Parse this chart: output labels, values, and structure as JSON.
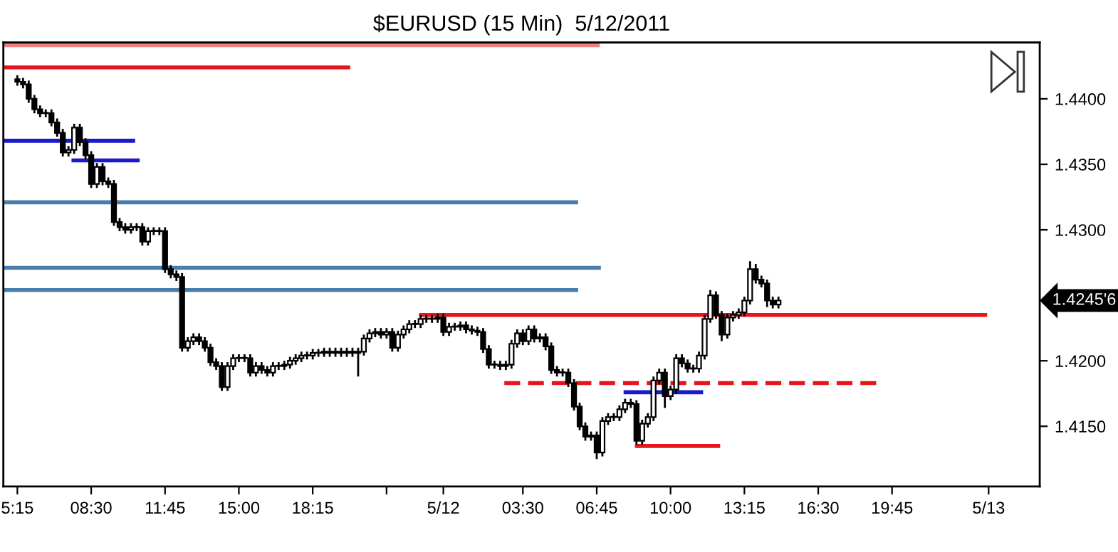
{
  "chart_data": {
    "type": "candlestick",
    "title": "$EURUSD (15 Min)  5/12/2011",
    "x": [
      "2011-05-11T05:15",
      "2011-05-11T05:30",
      "2011-05-11T05:45",
      "2011-05-11T06:00",
      "2011-05-11T06:15",
      "2011-05-11T06:30",
      "2011-05-11T06:45",
      "2011-05-11T07:00",
      "2011-05-11T07:15",
      "2011-05-11T07:30",
      "2011-05-11T07:45",
      "2011-05-11T08:00",
      "2011-05-11T08:15",
      "2011-05-11T08:30",
      "2011-05-11T08:45",
      "2011-05-11T09:00",
      "2011-05-11T09:15",
      "2011-05-11T09:30",
      "2011-05-11T09:45",
      "2011-05-11T10:00",
      "2011-05-11T10:15",
      "2011-05-11T10:30",
      "2011-05-11T10:45",
      "2011-05-11T11:00",
      "2011-05-11T11:15",
      "2011-05-11T11:30",
      "2011-05-11T11:45",
      "2011-05-11T12:00",
      "2011-05-11T12:15",
      "2011-05-11T12:30",
      "2011-05-11T12:45",
      "2011-05-11T13:00",
      "2011-05-11T13:15",
      "2011-05-11T13:30",
      "2011-05-11T13:45",
      "2011-05-11T14:00",
      "2011-05-11T14:15",
      "2011-05-11T14:30",
      "2011-05-11T14:45",
      "2011-05-11T15:00",
      "2011-05-11T15:15",
      "2011-05-11T15:30",
      "2011-05-11T15:45",
      "2011-05-11T16:00",
      "2011-05-11T16:15",
      "2011-05-11T16:30",
      "2011-05-11T16:45",
      "2011-05-11T17:00",
      "2011-05-11T17:15",
      "2011-05-11T17:30",
      "2011-05-11T17:45",
      "2011-05-11T18:00",
      "2011-05-11T18:15",
      "2011-05-11T18:30",
      "2011-05-11T18:45",
      "2011-05-11T19:00",
      "2011-05-11T19:15",
      "2011-05-11T19:30",
      "2011-05-11T19:45",
      "2011-05-11T20:00",
      "2011-05-11T20:15",
      "2011-05-11T20:30",
      "2011-05-11T20:45",
      "2011-05-11T21:00",
      "2011-05-11T21:15",
      "2011-05-11T21:30",
      "2011-05-11T21:45",
      "2011-05-11T22:00",
      "2011-05-11T22:15",
      "2011-05-11T22:30",
      "2011-05-11T22:45",
      "2011-05-11T23:00",
      "2011-05-11T23:15",
      "2011-05-11T23:30",
      "2011-05-11T23:45",
      "2011-05-12T00:00",
      "2011-05-12T00:15",
      "2011-05-12T00:30",
      "2011-05-12T00:45",
      "2011-05-12T01:00",
      "2011-05-12T01:15",
      "2011-05-12T01:30",
      "2011-05-12T01:45",
      "2011-05-12T02:00",
      "2011-05-12T02:15",
      "2011-05-12T02:30",
      "2011-05-12T02:45",
      "2011-05-12T03:00",
      "2011-05-12T03:15",
      "2011-05-12T03:30",
      "2011-05-12T03:45",
      "2011-05-12T04:00",
      "2011-05-12T04:15",
      "2011-05-12T04:30",
      "2011-05-12T04:45",
      "2011-05-12T05:00",
      "2011-05-12T05:15",
      "2011-05-12T05:30",
      "2011-05-12T05:45",
      "2011-05-12T06:00",
      "2011-05-12T06:15",
      "2011-05-12T06:30",
      "2011-05-12T06:45",
      "2011-05-12T07:00",
      "2011-05-12T07:15",
      "2011-05-12T07:30",
      "2011-05-12T07:45",
      "2011-05-12T08:00",
      "2011-05-12T08:15",
      "2011-05-12T08:30",
      "2011-05-12T08:45",
      "2011-05-12T09:00",
      "2011-05-12T09:15",
      "2011-05-12T09:30",
      "2011-05-12T09:45",
      "2011-05-12T10:00",
      "2011-05-12T10:15",
      "2011-05-12T10:30",
      "2011-05-12T10:45",
      "2011-05-12T11:00",
      "2011-05-12T11:15",
      "2011-05-12T11:30",
      "2011-05-12T11:45",
      "2011-05-12T12:00",
      "2011-05-12T12:15",
      "2011-05-12T12:30",
      "2011-05-12T12:45",
      "2011-05-12T13:00",
      "2011-05-12T13:15",
      "2011-05-12T13:30",
      "2011-05-12T13:45",
      "2011-05-12T14:00",
      "2011-05-12T14:15",
      "2011-05-12T14:30",
      "2011-05-12T14:45"
    ],
    "ohlc": [
      [
        1.4415,
        1.4418,
        1.441,
        1.4413
      ],
      [
        1.4413,
        1.4416,
        1.4408,
        1.4411
      ],
      [
        1.4411,
        1.4414,
        1.4397,
        1.44
      ],
      [
        1.44,
        1.4403,
        1.4389,
        1.4392
      ],
      [
        1.4392,
        1.4395,
        1.4386,
        1.4389
      ],
      [
        1.4389,
        1.4392,
        1.4386,
        1.4389
      ],
      [
        1.4389,
        1.4392,
        1.4379,
        1.4382
      ],
      [
        1.4382,
        1.4385,
        1.4371,
        1.4374
      ],
      [
        1.4374,
        1.4377,
        1.4356,
        1.4359
      ],
      [
        1.4359,
        1.4364,
        1.4356,
        1.4361
      ],
      [
        1.4361,
        1.4381,
        1.4358,
        1.4378
      ],
      [
        1.4378,
        1.4381,
        1.4364,
        1.4367
      ],
      [
        1.4367,
        1.437,
        1.4354,
        1.4357
      ],
      [
        1.4357,
        1.436,
        1.4332,
        1.4335
      ],
      [
        1.4335,
        1.4351,
        1.4332,
        1.4348
      ],
      [
        1.4348,
        1.4351,
        1.4334,
        1.4337
      ],
      [
        1.4337,
        1.434,
        1.4332,
        1.4335
      ],
      [
        1.4335,
        1.4338,
        1.4303,
        1.4306
      ],
      [
        1.4306,
        1.4309,
        1.4299,
        1.4302
      ],
      [
        1.4302,
        1.4305,
        1.4297,
        1.43
      ],
      [
        1.43,
        1.4305,
        1.4297,
        1.4302
      ],
      [
        1.4302,
        1.4305,
        1.4299,
        1.4302
      ],
      [
        1.4302,
        1.4305,
        1.4288,
        1.4291
      ],
      [
        1.4291,
        1.4302,
        1.4288,
        1.4299
      ],
      [
        1.4299,
        1.4302,
        1.4296,
        1.4299
      ],
      [
        1.4299,
        1.4302,
        1.4296,
        1.4299
      ],
      [
        1.4299,
        1.4302,
        1.4267,
        1.427
      ],
      [
        1.427,
        1.4273,
        1.4263,
        1.4266
      ],
      [
        1.4266,
        1.4269,
        1.4261,
        1.4264
      ],
      [
        1.4264,
        1.4267,
        1.4207,
        1.421
      ],
      [
        1.421,
        1.4218,
        1.4207,
        1.4215
      ],
      [
        1.4215,
        1.4221,
        1.4212,
        1.4218
      ],
      [
        1.4218,
        1.4221,
        1.4212,
        1.4215
      ],
      [
        1.4215,
        1.4218,
        1.4207,
        1.421
      ],
      [
        1.421,
        1.4213,
        1.4196,
        1.4199
      ],
      [
        1.4199,
        1.4202,
        1.4193,
        1.4196
      ],
      [
        1.4196,
        1.4199,
        1.4177,
        1.418
      ],
      [
        1.418,
        1.4199,
        1.4177,
        1.4196
      ],
      [
        1.4196,
        1.4205,
        1.4193,
        1.4202
      ],
      [
        1.4202,
        1.4205,
        1.4199,
        1.4202
      ],
      [
        1.4202,
        1.4205,
        1.4199,
        1.4202
      ],
      [
        1.4202,
        1.4205,
        1.4188,
        1.4191
      ],
      [
        1.4191,
        1.4199,
        1.4188,
        1.4196
      ],
      [
        1.4196,
        1.4199,
        1.419,
        1.4193
      ],
      [
        1.4193,
        1.4196,
        1.4188,
        1.4191
      ],
      [
        1.4191,
        1.4199,
        1.4188,
        1.4196
      ],
      [
        1.4196,
        1.4199,
        1.4193,
        1.4196
      ],
      [
        1.4196,
        1.42,
        1.4193,
        1.4197
      ],
      [
        1.4197,
        1.4203,
        1.4194,
        1.42
      ],
      [
        1.42,
        1.4205,
        1.4197,
        1.4202
      ],
      [
        1.4202,
        1.4207,
        1.4199,
        1.4204
      ],
      [
        1.4204,
        1.4207,
        1.4201,
        1.4204
      ],
      [
        1.4204,
        1.4209,
        1.4201,
        1.4206
      ],
      [
        1.4206,
        1.4209,
        1.4203,
        1.4206
      ],
      [
        1.4206,
        1.421,
        1.4203,
        1.4207
      ],
      [
        1.4207,
        1.421,
        1.4203,
        1.4206
      ],
      [
        1.4206,
        1.421,
        1.4203,
        1.4207
      ],
      [
        1.4207,
        1.421,
        1.4203,
        1.4206
      ],
      [
        1.4206,
        1.421,
        1.4203,
        1.4207
      ],
      [
        1.4207,
        1.421,
        1.4203,
        1.4206
      ],
      [
        1.4206,
        1.421,
        1.4188,
        1.4207
      ],
      [
        1.4207,
        1.422,
        1.4204,
        1.4217
      ],
      [
        1.4217,
        1.4224,
        1.4214,
        1.4221
      ],
      [
        1.4221,
        1.4225,
        1.4218,
        1.4222
      ],
      [
        1.4222,
        1.4225,
        1.4217,
        1.422
      ],
      [
        1.422,
        1.4225,
        1.4217,
        1.4222
      ],
      [
        1.4222,
        1.4225,
        1.4207,
        1.421
      ],
      [
        1.421,
        1.4223,
        1.4207,
        1.422
      ],
      [
        1.422,
        1.4227,
        1.4217,
        1.4224
      ],
      [
        1.4224,
        1.4231,
        1.4221,
        1.4228
      ],
      [
        1.4228,
        1.4231,
        1.4225,
        1.4228
      ],
      [
        1.4228,
        1.4235,
        1.4225,
        1.4232
      ],
      [
        1.4232,
        1.4235,
        1.4229,
        1.4232
      ],
      [
        1.4232,
        1.4235,
        1.4229,
        1.4232
      ],
      [
        1.4232,
        1.4236,
        1.4229,
        1.4233
      ],
      [
        1.4233,
        1.4236,
        1.4219,
        1.4222
      ],
      [
        1.4222,
        1.4229,
        1.4219,
        1.4226
      ],
      [
        1.4226,
        1.4229,
        1.4223,
        1.4226
      ],
      [
        1.4226,
        1.423,
        1.4223,
        1.4227
      ],
      [
        1.4227,
        1.423,
        1.4221,
        1.4224
      ],
      [
        1.4224,
        1.4227,
        1.422,
        1.4223
      ],
      [
        1.4223,
        1.4226,
        1.4219,
        1.4222
      ],
      [
        1.4222,
        1.4225,
        1.4206,
        1.4209
      ],
      [
        1.4209,
        1.4212,
        1.4194,
        1.4197
      ],
      [
        1.4197,
        1.42,
        1.4194,
        1.4197
      ],
      [
        1.4197,
        1.42,
        1.4193,
        1.4196
      ],
      [
        1.4196,
        1.42,
        1.4193,
        1.4197
      ],
      [
        1.4197,
        1.4216,
        1.4194,
        1.4213
      ],
      [
        1.4213,
        1.4224,
        1.421,
        1.4221
      ],
      [
        1.4221,
        1.4224,
        1.4212,
        1.4215
      ],
      [
        1.4215,
        1.4227,
        1.4212,
        1.4224
      ],
      [
        1.4224,
        1.4227,
        1.4214,
        1.4217
      ],
      [
        1.4217,
        1.4221,
        1.4214,
        1.4218
      ],
      [
        1.4218,
        1.4221,
        1.4208,
        1.4211
      ],
      [
        1.4211,
        1.4214,
        1.419,
        1.4193
      ],
      [
        1.4193,
        1.4196,
        1.4188,
        1.4191
      ],
      [
        1.4191,
        1.4194,
        1.4188,
        1.4191
      ],
      [
        1.4191,
        1.4194,
        1.418,
        1.4183
      ],
      [
        1.4183,
        1.4186,
        1.4162,
        1.4165
      ],
      [
        1.4165,
        1.4168,
        1.4147,
        1.415
      ],
      [
        1.415,
        1.4153,
        1.4139,
        1.4142
      ],
      [
        1.4142,
        1.4146,
        1.4139,
        1.4143
      ],
      [
        1.4143,
        1.4146,
        1.4125,
        1.413
      ],
      [
        1.413,
        1.4157,
        1.4127,
        1.4154
      ],
      [
        1.4154,
        1.416,
        1.4151,
        1.4157
      ],
      [
        1.4157,
        1.416,
        1.4154,
        1.4157
      ],
      [
        1.4157,
        1.4166,
        1.4154,
        1.4163
      ],
      [
        1.4163,
        1.4171,
        1.416,
        1.4168
      ],
      [
        1.4168,
        1.4171,
        1.4164,
        1.4167
      ],
      [
        1.4167,
        1.417,
        1.4136,
        1.4139
      ],
      [
        1.4139,
        1.4155,
        1.4136,
        1.4152
      ],
      [
        1.4152,
        1.416,
        1.4149,
        1.4157
      ],
      [
        1.4157,
        1.4188,
        1.4154,
        1.4185
      ],
      [
        1.4185,
        1.4194,
        1.4182,
        1.4191
      ],
      [
        1.4191,
        1.4194,
        1.4164,
        1.4173
      ],
      [
        1.4173,
        1.4181,
        1.417,
        1.4178
      ],
      [
        1.4178,
        1.4205,
        1.4175,
        1.4202
      ],
      [
        1.4202,
        1.4205,
        1.4195,
        1.4198
      ],
      [
        1.4198,
        1.4201,
        1.4191,
        1.4194
      ],
      [
        1.4194,
        1.4197,
        1.4191,
        1.4194
      ],
      [
        1.4194,
        1.4207,
        1.4191,
        1.4204
      ],
      [
        1.4204,
        1.4235,
        1.4201,
        1.4232
      ],
      [
        1.4232,
        1.4254,
        1.4229,
        1.425
      ],
      [
        1.425,
        1.4253,
        1.4232,
        1.4235
      ],
      [
        1.4235,
        1.4238,
        1.4215,
        1.422
      ],
      [
        1.422,
        1.4236,
        1.4217,
        1.4233
      ],
      [
        1.4233,
        1.4238,
        1.423,
        1.4235
      ],
      [
        1.4235,
        1.424,
        1.4232,
        1.4237
      ],
      [
        1.4237,
        1.4249,
        1.4234,
        1.4246
      ],
      [
        1.4246,
        1.4276,
        1.4243,
        1.427
      ],
      [
        1.427,
        1.4274,
        1.4259,
        1.4262
      ],
      [
        1.4262,
        1.4265,
        1.4256,
        1.4259
      ],
      [
        1.4259,
        1.4262,
        1.4241,
        1.4246
      ],
      [
        1.4246,
        1.4249,
        1.424,
        1.4243
      ],
      [
        1.4243,
        1.4249,
        1.424,
        1.4246
      ]
    ],
    "series": [
      {
        "type": "line",
        "color": "#f08080",
        "x": [
          "2011-05-11T04:38",
          "2011-05-12T06:53"
        ],
        "values": [
          1.4441,
          1.4441
        ]
      },
      {
        "type": "line",
        "color": "#e8141c",
        "x": [
          "2011-05-11T04:38",
          "2011-05-11T19:54"
        ],
        "values": [
          1.4424,
          1.4424
        ]
      },
      {
        "type": "line",
        "color": "#1a1acc",
        "x": [
          "2011-05-11T04:38",
          "2011-05-11T10:26"
        ],
        "values": [
          1.4368,
          1.4368
        ]
      },
      {
        "type": "line",
        "color": "#1a1acc",
        "x": [
          "2011-05-11T07:38",
          "2011-05-11T10:38"
        ],
        "values": [
          1.4353,
          1.4353
        ]
      },
      {
        "type": "line",
        "color": "#4a7eaa",
        "x": [
          "2011-05-11T04:38",
          "2011-05-12T05:56"
        ],
        "values": [
          1.4321,
          1.4321
        ]
      },
      {
        "type": "line",
        "color": "#4a7eaa",
        "x": [
          "2011-05-11T04:38",
          "2011-05-12T06:56"
        ],
        "values": [
          1.4271,
          1.4271
        ]
      },
      {
        "type": "line",
        "color": "#4a7eaa",
        "x": [
          "2011-05-11T04:38",
          "2011-05-12T05:56"
        ],
        "values": [
          1.4254,
          1.4254
        ]
      },
      {
        "type": "line",
        "color": "#e8141c",
        "x": [
          "2011-05-11T22:56",
          "2011-05-12T23:56"
        ],
        "values": [
          1.4235,
          1.4235
        ]
      },
      {
        "type": "line",
        "color": "#e8141c",
        "line_style": "dashed",
        "x": [
          "2011-05-12T02:41",
          "2011-05-12T19:08"
        ],
        "values": [
          1.4183,
          1.4183
        ]
      },
      {
        "type": "line",
        "color": "#1a1acc",
        "x": [
          "2011-05-12T07:56",
          "2011-05-12T11:26"
        ],
        "values": [
          1.4176,
          1.4176
        ]
      },
      {
        "type": "line",
        "color": "#e8141c",
        "x": [
          "2011-05-12T08:26",
          "2011-05-12T12:11"
        ],
        "values": [
          1.4135,
          1.4135
        ]
      }
    ],
    "annotations": [
      "1.4245'6"
    ],
    "xlim": [
      "2011-05-11T04:38",
      "2011-05-13T02:15"
    ],
    "ylim": [
      1.4104,
      1.4443
    ],
    "xticks": [
      {
        "value": "2011-05-11T05:15",
        "label": "5:15"
      },
      {
        "value": "2011-05-11T08:30",
        "label": "08:30"
      },
      {
        "value": "2011-05-11T11:45",
        "label": "11:45"
      },
      {
        "value": "2011-05-11T15:00",
        "label": "15:00"
      },
      {
        "value": "2011-05-11T18:15",
        "label": "18:15"
      },
      {
        "value": "2011-05-11T21:30",
        "label": null
      },
      {
        "value": "2011-05-12T00:00",
        "label": "5/12"
      },
      {
        "value": "2011-05-12T03:30",
        "label": "03:30"
      },
      {
        "value": "2011-05-12T06:45",
        "label": "06:45"
      },
      {
        "value": "2011-05-12T10:00",
        "label": "10:00"
      },
      {
        "value": "2011-05-12T13:15",
        "label": "13:15"
      },
      {
        "value": "2011-05-12T16:30",
        "label": "16:30"
      },
      {
        "value": "2011-05-12T19:45",
        "label": "19:45"
      },
      {
        "value": "2011-05-13T00:00",
        "label": "5/13"
      }
    ],
    "yticks": [
      {
        "value": 1.415,
        "label": "1.4150"
      },
      {
        "value": 1.42,
        "label": "1.4200"
      },
      {
        "value": 1.43,
        "label": "1.4300"
      },
      {
        "value": 1.435,
        "label": "1.4350"
      },
      {
        "value": 1.44,
        "label": "1.4400"
      }
    ],
    "grid": false
  }
}
